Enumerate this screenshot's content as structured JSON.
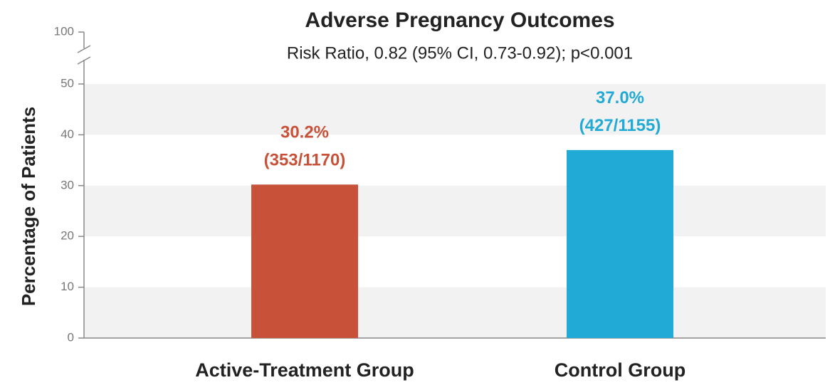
{
  "chart_data": {
    "type": "bar",
    "title": "Adverse Pregnancy Outcomes",
    "subtitle": "Risk Ratio, 0.82 (95% CI, 0.73-0.92); p<0.001",
    "y_label": "Percentage of Patients",
    "categories": [
      "Active-Treatment Group",
      "Control Group"
    ],
    "values": [
      30.2,
      37.0
    ],
    "value_labels": [
      "30.2%",
      "37.0%"
    ],
    "counts": [
      "(353/1170)",
      "(427/1155)"
    ],
    "colors": [
      "#c8513a",
      "#22aad6"
    ],
    "ylim": [
      0,
      100
    ],
    "yticks": [
      0,
      10,
      20,
      30,
      40,
      50,
      100
    ],
    "axis_break": [
      50,
      100
    ],
    "grid_bands": true
  }
}
